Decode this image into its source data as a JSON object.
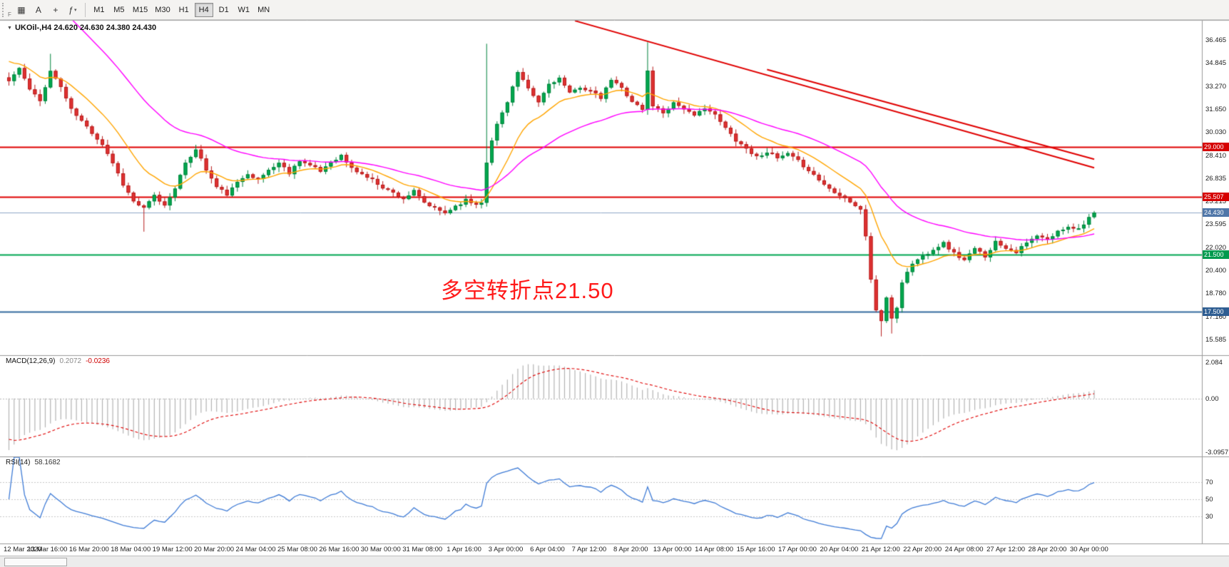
{
  "toolbar": {
    "grip_letter": "F",
    "icons": [
      {
        "name": "new-chart-icon",
        "glyph": "▦",
        "arrow": false
      },
      {
        "name": "cursor-mode-icon",
        "glyph": "A",
        "arrow": false
      },
      {
        "name": "crosshair-icon",
        "glyph": "+",
        "arrow": false
      },
      {
        "name": "indicators-icon",
        "glyph": "ƒ",
        "arrow": true
      }
    ],
    "timeframes": [
      {
        "label": "M1",
        "active": false
      },
      {
        "label": "M5",
        "active": false
      },
      {
        "label": "M15",
        "active": false
      },
      {
        "label": "M30",
        "active": false
      },
      {
        "label": "H1",
        "active": false
      },
      {
        "label": "H4",
        "active": true
      },
      {
        "label": "D1",
        "active": false
      },
      {
        "label": "W1",
        "active": false
      },
      {
        "label": "MN",
        "active": false
      }
    ]
  },
  "chart": {
    "symbol_label": "UKOil-,H4 24.620 24.630 24.380 24.430",
    "annotation": {
      "text": "多空转折点21.50",
      "color": "#FF1A1A"
    },
    "colors": {
      "up": "#00A94F",
      "up_border": "#00833C",
      "down": "#E03232",
      "down_border": "#B71C1C",
      "ma_fast": "#FFA500",
      "ma_slow": "#FF00FF",
      "trend": "#E00000",
      "macd_hist": "#B4B4B4",
      "macd_signal": "#E00000",
      "rsi": "#3E7BD6",
      "level_dotted": "#C8C8C8"
    },
    "hlines": [
      {
        "price": 29.0,
        "color": "#E00000",
        "width": 2
      },
      {
        "price": 25.507,
        "color": "#E00000",
        "width": 2
      },
      {
        "price": 24.43,
        "color": "#8FA8C8",
        "width": 1
      },
      {
        "price": 21.5,
        "color": "#00A651",
        "width": 2
      },
      {
        "price": 17.5,
        "color": "#336B9E",
        "width": 2
      }
    ],
    "trendlines": [
      {
        "from": [
          109,
          37.8
        ],
        "to": [
          209,
          27.55
        ]
      },
      {
        "from": [
          146,
          34.4
        ],
        "to": [
          209,
          28.15
        ]
      }
    ],
    "price_tags": [
      {
        "text": "29.000",
        "price": 29.0,
        "bg": "#D60000"
      },
      {
        "text": "25.507",
        "price": 25.507,
        "bg": "#D60000"
      },
      {
        "text": "24.430",
        "price": 24.43,
        "bg": "#4F76A8"
      },
      {
        "text": "21.500",
        "price": 21.5,
        "bg": "#009A4E"
      },
      {
        "text": "17.500",
        "price": 17.5,
        "bg": "#2F5E92"
      }
    ]
  },
  "chart_data": {
    "type": "candlestick",
    "instrument": "UKOil-",
    "timeframe": "H4",
    "ohlc_summary": {
      "open": 24.62,
      "high": 24.63,
      "low": 24.38,
      "close": 24.43
    },
    "num_candles": 210,
    "y_axis": {
      "min": 15.585,
      "max": 36.465,
      "tick_labels": [
        "36.465",
        "34.845",
        "33.270",
        "31.650",
        "30.030",
        "28.410",
        "26.835",
        "25.215",
        "23.595",
        "22.020",
        "20.400",
        "18.780",
        "17.160",
        "15.585"
      ]
    },
    "x_axis_dates": [
      "12 Mar 2020",
      "13 Mar 16:00",
      "16 Mar 20:00",
      "18 Mar 04:00",
      "19 Mar 12:00",
      "20 Mar 20:00",
      "24 Mar 04:00",
      "25 Mar 08:00",
      "26 Mar 16:00",
      "30 Mar 00:00",
      "31 Mar 08:00",
      "1 Apr 16:00",
      "3 Apr 00:00",
      "6 Apr 04:00",
      "7 Apr 12:00",
      "8 Apr 20:00",
      "13 Apr 00:00",
      "14 Apr 08:00",
      "15 Apr 16:00",
      "17 Apr 00:00",
      "20 Apr 04:00",
      "21 Apr 12:00",
      "22 Apr 20:00",
      "24 Apr 08:00",
      "27 Apr 12:00",
      "28 Apr 20:00",
      "30 Apr 00:00"
    ],
    "levels": {
      "resistance": [
        29.0,
        25.507
      ],
      "pivot_annotated": 21.5,
      "support": 17.5,
      "current_bid": 24.43
    },
    "price_path_anchors": [
      [
        0,
        33.6
      ],
      [
        2,
        34.5
      ],
      [
        4,
        33.0
      ],
      [
        6,
        32.2
      ],
      [
        8,
        34.3
      ],
      [
        10,
        33.2
      ],
      [
        12,
        31.6
      ],
      [
        14,
        30.8
      ],
      [
        16,
        30.0
      ],
      [
        18,
        29.2
      ],
      [
        20,
        27.9
      ],
      [
        22,
        26.4
      ],
      [
        24,
        25.2
      ],
      [
        26,
        24.7
      ],
      [
        28,
        25.6
      ],
      [
        30,
        24.9
      ],
      [
        32,
        26.2
      ],
      [
        34,
        27.8
      ],
      [
        36,
        28.9
      ],
      [
        38,
        27.4
      ],
      [
        40,
        26.2
      ],
      [
        42,
        25.7
      ],
      [
        44,
        26.5
      ],
      [
        46,
        27.2
      ],
      [
        48,
        26.7
      ],
      [
        50,
        27.4
      ],
      [
        52,
        27.9
      ],
      [
        54,
        27.2
      ],
      [
        56,
        28.1
      ],
      [
        58,
        27.7
      ],
      [
        60,
        27.3
      ],
      [
        62,
        28.0
      ],
      [
        64,
        28.4
      ],
      [
        66,
        27.5
      ],
      [
        68,
        27.1
      ],
      [
        70,
        26.7
      ],
      [
        72,
        26.2
      ],
      [
        74,
        25.8
      ],
      [
        76,
        25.4
      ],
      [
        78,
        25.9
      ],
      [
        80,
        25.1
      ],
      [
        82,
        24.7
      ],
      [
        84,
        24.4
      ],
      [
        86,
        24.9
      ],
      [
        88,
        25.3
      ],
      [
        90,
        25.0
      ],
      [
        91,
        25.2
      ],
      [
        92,
        28.0
      ],
      [
        93,
        29.4
      ],
      [
        94,
        30.6
      ],
      [
        96,
        32.2
      ],
      [
        98,
        34.2
      ],
      [
        100,
        33.0
      ],
      [
        102,
        32.1
      ],
      [
        104,
        33.4
      ],
      [
        106,
        33.8
      ],
      [
        108,
        32.7
      ],
      [
        110,
        33.2
      ],
      [
        112,
        32.9
      ],
      [
        114,
        32.4
      ],
      [
        116,
        33.7
      ],
      [
        118,
        33.1
      ],
      [
        120,
        32.2
      ],
      [
        122,
        31.6
      ],
      [
        123,
        34.3
      ],
      [
        124,
        31.9
      ],
      [
        126,
        31.4
      ],
      [
        128,
        32.1
      ],
      [
        130,
        31.7
      ],
      [
        132,
        31.1
      ],
      [
        134,
        31.8
      ],
      [
        136,
        31.2
      ],
      [
        138,
        30.3
      ],
      [
        140,
        29.5
      ],
      [
        142,
        28.9
      ],
      [
        144,
        28.3
      ],
      [
        146,
        28.7
      ],
      [
        148,
        28.2
      ],
      [
        150,
        28.5
      ],
      [
        152,
        28.0
      ],
      [
        154,
        27.4
      ],
      [
        156,
        26.7
      ],
      [
        158,
        26.1
      ],
      [
        160,
        25.7
      ],
      [
        162,
        25.2
      ],
      [
        164,
        24.6
      ],
      [
        165,
        22.8
      ],
      [
        166,
        19.8
      ],
      [
        167,
        17.6
      ],
      [
        168,
        16.9
      ],
      [
        169,
        18.4
      ],
      [
        170,
        17.1
      ],
      [
        171,
        17.8
      ],
      [
        172,
        19.6
      ],
      [
        174,
        20.9
      ],
      [
        176,
        21.4
      ],
      [
        178,
        21.9
      ],
      [
        180,
        22.3
      ],
      [
        182,
        21.6
      ],
      [
        184,
        21.1
      ],
      [
        186,
        21.9
      ],
      [
        188,
        21.4
      ],
      [
        190,
        22.4
      ],
      [
        192,
        22.0
      ],
      [
        194,
        21.7
      ],
      [
        196,
        22.3
      ],
      [
        198,
        22.8
      ],
      [
        200,
        22.5
      ],
      [
        202,
        23.1
      ],
      [
        204,
        23.5
      ],
      [
        206,
        23.3
      ],
      [
        208,
        24.1
      ],
      [
        209,
        24.43
      ]
    ],
    "wick_overrides": [
      {
        "i": 8,
        "high": 35.5
      },
      {
        "i": 26,
        "low": 23.1
      },
      {
        "i": 92,
        "high": 36.2
      },
      {
        "i": 123,
        "high": 36.3
      },
      {
        "i": 168,
        "low": 15.8
      },
      {
        "i": 170,
        "low": 16.0
      }
    ],
    "moving_averages": [
      {
        "period": 13,
        "seed": 35.2,
        "color_key": "ma_fast"
      },
      {
        "period": 36,
        "seed": 43.0,
        "color_key": "ma_slow"
      }
    ],
    "macd": {
      "label": "MACD(12,26,9)",
      "main_value": "0.2072",
      "signal_value": "-0.0236",
      "fast": 12,
      "slow": 26,
      "signal": 9,
      "seed_fast_offset": -1.0,
      "seed_slow_offset": 2.3,
      "seed_signal": -2.2,
      "scale_values": [
        2.084,
        0,
        -3.0957
      ],
      "scale_labels": [
        "2.084",
        "0.00",
        "-3.0957"
      ]
    },
    "rsi": {
      "label": "RSI(14)",
      "value_text": "58.1682",
      "period": 14,
      "levels": [
        70,
        50,
        30
      ],
      "level_labels": [
        "70",
        "50",
        "30"
      ]
    }
  }
}
